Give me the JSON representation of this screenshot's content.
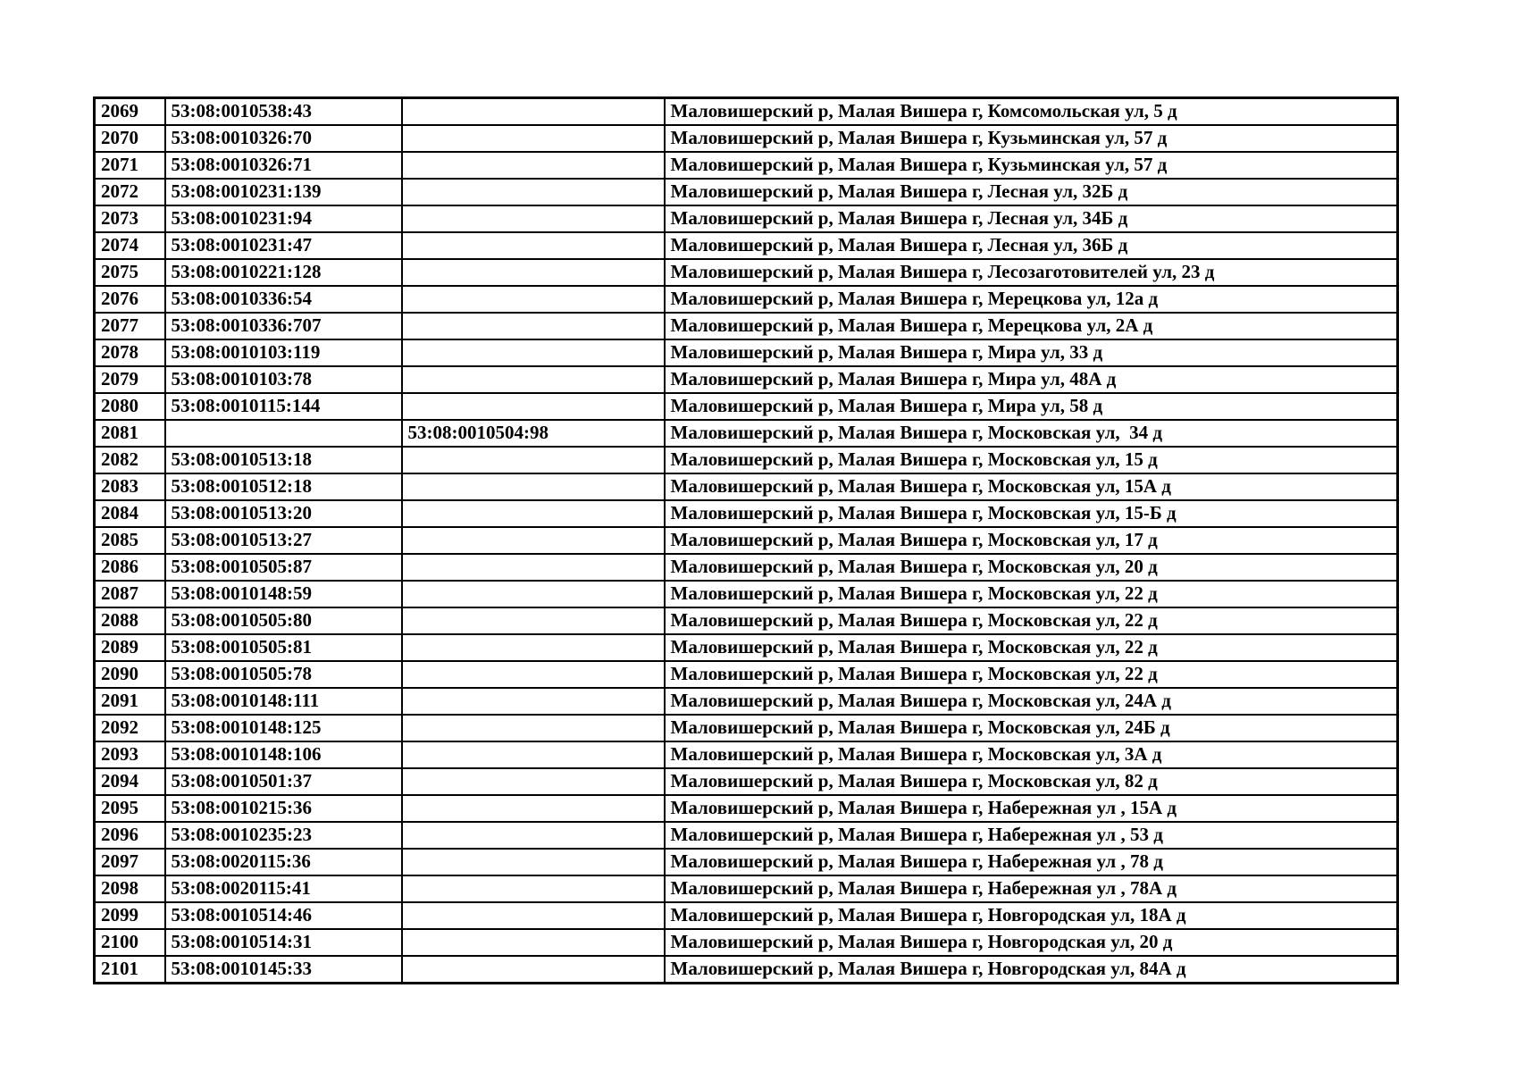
{
  "page": {
    "background_color": "#ffffff",
    "text_color": "#000000",
    "border_color": "#000000"
  },
  "table": {
    "row_number_range": "2069-2101",
    "rows": [
      {
        "num": "2069",
        "cad1": "53:08:0010538:43",
        "cad2": "",
        "address": "Маловишерский р, Малая Вишера г, Комсомольская ул, 5 д"
      },
      {
        "num": "2070",
        "cad1": "53:08:0010326:70",
        "cad2": "",
        "address": "Маловишерский р, Малая Вишера г, Кузьминская ул, 57 д"
      },
      {
        "num": "2071",
        "cad1": "53:08:0010326:71",
        "cad2": "",
        "address": "Маловишерский р, Малая Вишера г, Кузьминская ул, 57 д"
      },
      {
        "num": "2072",
        "cad1": "53:08:0010231:139",
        "cad2": "",
        "address": "Маловишерский р, Малая Вишера г, Лесная ул, 32Б д"
      },
      {
        "num": "2073",
        "cad1": "53:08:0010231:94",
        "cad2": "",
        "address": "Маловишерский р, Малая Вишера г, Лесная ул, 34Б д"
      },
      {
        "num": "2074",
        "cad1": "53:08:0010231:47",
        "cad2": "",
        "address": "Маловишерский р, Малая Вишера г, Лесная ул, 36Б д"
      },
      {
        "num": "2075",
        "cad1": "53:08:0010221:128",
        "cad2": "",
        "address": "Маловишерский р, Малая Вишера г, Лесозаготовителей ул, 23 д"
      },
      {
        "num": "2076",
        "cad1": "53:08:0010336:54",
        "cad2": "",
        "address": "Маловишерский р, Малая Вишера г, Мерецкова ул, 12а д"
      },
      {
        "num": "2077",
        "cad1": "53:08:0010336:707",
        "cad2": "",
        "address": "Маловишерский р, Малая Вишера г, Мерецкова ул, 2А д"
      },
      {
        "num": "2078",
        "cad1": "53:08:0010103:119",
        "cad2": "",
        "address": "Маловишерский р, Малая Вишера г, Мира ул, 33 д"
      },
      {
        "num": "2079",
        "cad1": "53:08:0010103:78",
        "cad2": "",
        "address": "Маловишерский р, Малая Вишера г, Мира ул, 48А д"
      },
      {
        "num": "2080",
        "cad1": "53:08:0010115:144",
        "cad2": "",
        "address": "Маловишерский р, Малая Вишера г, Мира ул, 58 д"
      },
      {
        "num": "2081",
        "cad1": "",
        "cad2": "53:08:0010504:98",
        "address": "Маловишерский р, Малая Вишера г, Московская ул,  34 д"
      },
      {
        "num": "2082",
        "cad1": "53:08:0010513:18",
        "cad2": "",
        "address": "Маловишерский р, Малая Вишера г, Московская ул, 15 д"
      },
      {
        "num": "2083",
        "cad1": "53:08:0010512:18",
        "cad2": "",
        "address": "Маловишерский р, Малая Вишера г, Московская ул, 15А д"
      },
      {
        "num": "2084",
        "cad1": "53:08:0010513:20",
        "cad2": "",
        "address": "Маловишерский р, Малая Вишера г, Московская ул, 15-Б д"
      },
      {
        "num": "2085",
        "cad1": "53:08:0010513:27",
        "cad2": "",
        "address": "Маловишерский р, Малая Вишера г, Московская ул, 17 д"
      },
      {
        "num": "2086",
        "cad1": "53:08:0010505:87",
        "cad2": "",
        "address": "Маловишерский р, Малая Вишера г, Московская ул, 20 д"
      },
      {
        "num": "2087",
        "cad1": "53:08:0010148:59",
        "cad2": "",
        "address": "Маловишерский р, Малая Вишера г, Московская ул, 22 д"
      },
      {
        "num": "2088",
        "cad1": "53:08:0010505:80",
        "cad2": "",
        "address": "Маловишерский р, Малая Вишера г, Московская ул, 22 д"
      },
      {
        "num": "2089",
        "cad1": "53:08:0010505:81",
        "cad2": "",
        "address": "Маловишерский р, Малая Вишера г, Московская ул, 22 д"
      },
      {
        "num": "2090",
        "cad1": "53:08:0010505:78",
        "cad2": "",
        "address": "Маловишерский р, Малая Вишера г, Московская ул, 22 д"
      },
      {
        "num": "2091",
        "cad1": "53:08:0010148:111",
        "cad2": "",
        "address": "Маловишерский р, Малая Вишера г, Московская ул, 24А д"
      },
      {
        "num": "2092",
        "cad1": "53:08:0010148:125",
        "cad2": "",
        "address": "Маловишерский р, Малая Вишера г, Московская ул, 24Б д"
      },
      {
        "num": "2093",
        "cad1": "53:08:0010148:106",
        "cad2": "",
        "address": "Маловишерский р, Малая Вишера г, Московская ул, 3А д"
      },
      {
        "num": "2094",
        "cad1": "53:08:0010501:37",
        "cad2": "",
        "address": "Маловишерский р, Малая Вишера г, Московская ул, 82 д"
      },
      {
        "num": "2095",
        "cad1": "53:08:0010215:36",
        "cad2": "",
        "address": "Маловишерский р, Малая Вишера г, Набережная ул , 15А д"
      },
      {
        "num": "2096",
        "cad1": "53:08:0010235:23",
        "cad2": "",
        "address": "Маловишерский р, Малая Вишера г, Набережная ул , 53 д"
      },
      {
        "num": "2097",
        "cad1": "53:08:0020115:36",
        "cad2": "",
        "address": "Маловишерский р, Малая Вишера г, Набережная ул , 78 д"
      },
      {
        "num": "2098",
        "cad1": "53:08:0020115:41",
        "cad2": "",
        "address": "Маловишерский р, Малая Вишера г, Набережная ул , 78А д"
      },
      {
        "num": "2099",
        "cad1": "53:08:0010514:46",
        "cad2": "",
        "address": "Маловишерский р, Малая Вишера г, Новгородская ул, 18А д"
      },
      {
        "num": "2100",
        "cad1": "53:08:0010514:31",
        "cad2": "",
        "address": "Маловишерский р, Малая Вишера г, Новгородская ул, 20 д"
      },
      {
        "num": "2101",
        "cad1": "53:08:0010145:33",
        "cad2": "",
        "address": "Маловишерский р, Малая Вишера г, Новгородская ул, 84А д"
      }
    ]
  }
}
